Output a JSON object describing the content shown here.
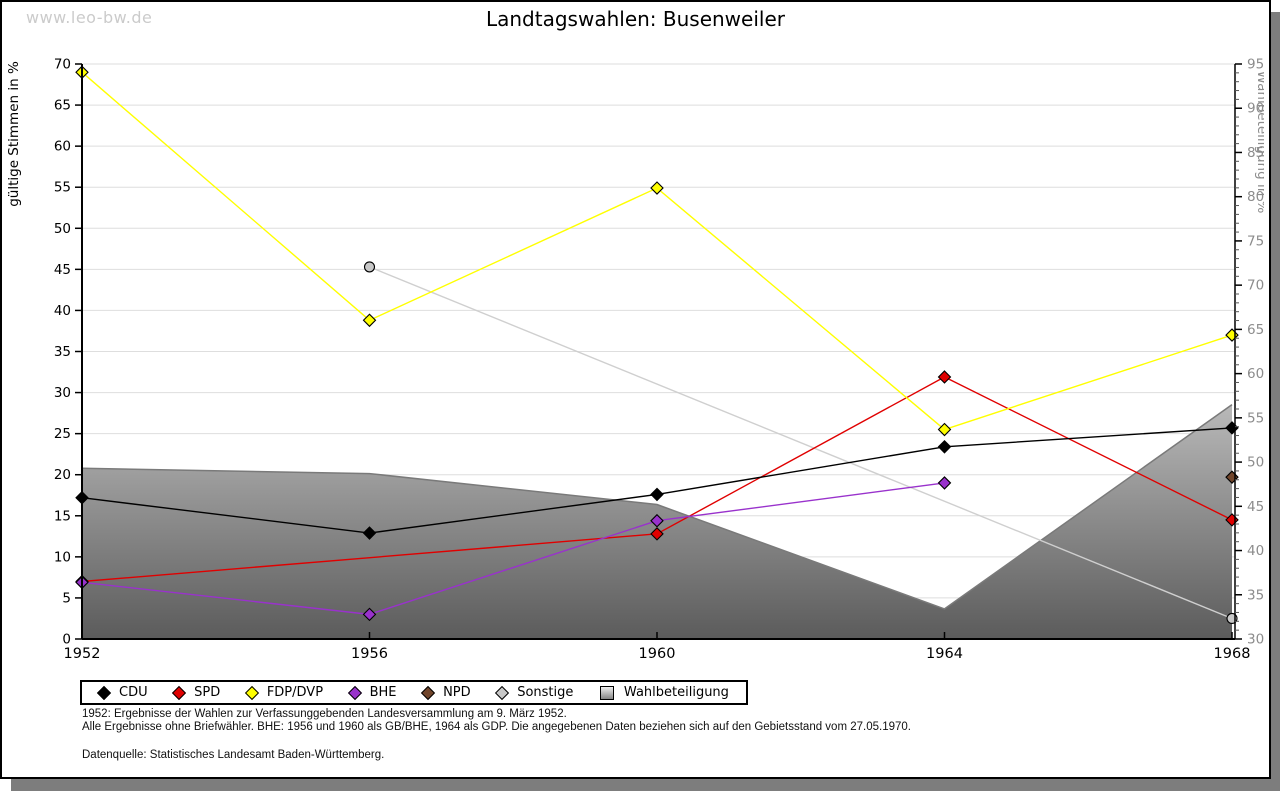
{
  "watermark": "www.leo-bw.de",
  "title": "Landtagswahlen: Busenweiler",
  "footnotes": {
    "line1": "1952: Ergebnisse der Wahlen zur Verfassunggebenden Landesversammlung am 9. März 1952.",
    "line2": "Alle Ergebnisse ohne Briefwähler. BHE: 1956 und 1960 als GB/BHE, 1964 als GDP. Die angegebenen Daten beziehen sich auf den Gebietsstand vom 27.05.1970.",
    "source": "Datenquelle: Statistisches Landesamt Baden-Württemberg."
  },
  "legend": {
    "items": [
      {
        "label": "CDU",
        "color": "#000000",
        "shape": "diamond"
      },
      {
        "label": "SPD",
        "color": "#e00000",
        "shape": "diamond"
      },
      {
        "label": "FDP/DVP",
        "color": "#ffff00",
        "shape": "diamond"
      },
      {
        "label": "BHE",
        "color": "#9932cc",
        "shape": "diamond"
      },
      {
        "label": "NPD",
        "color": "#71452b",
        "shape": "diamond"
      },
      {
        "label": "Sonstige",
        "color": "#c8c8c8",
        "shape": "diamond"
      },
      {
        "label": "Wahlbeteiligung",
        "color": "#9a9a9a",
        "shape": "square"
      }
    ]
  },
  "chart_data": {
    "type": "line",
    "title": "Landtagswahlen: Busenweiler",
    "x": [
      1952,
      1956,
      1960,
      1964,
      1968
    ],
    "y_left": {
      "label": "gültige Stimmen in %",
      "min": 0,
      "max": 70,
      "tick_step": 5,
      "text_color": "#000000"
    },
    "y_right": {
      "label": "Wahlbeteiligung in %",
      "min": 30,
      "max": 95,
      "tick_step": 5,
      "minor_step": 1,
      "text_color": "#8c8c8c"
    },
    "grid": true,
    "grid_color": "#dedede",
    "legend_position": "bottom",
    "series": [
      {
        "name": "Sonstige",
        "axis": "left",
        "color": "#cfcfcf",
        "marker": "circle",
        "marker_fill": "#c8c8c8",
        "points": [
          [
            1956,
            45.3
          ],
          [
            1968,
            2.5
          ]
        ]
      },
      {
        "name": "SPD",
        "axis": "left",
        "color": "#e00000",
        "marker": "diamond",
        "points": [
          [
            1952,
            7.0
          ],
          [
            1960,
            12.8
          ],
          [
            1964,
            31.9
          ],
          [
            1968,
            14.5
          ]
        ]
      },
      {
        "name": "BHE",
        "axis": "left",
        "color": "#9932cc",
        "marker": "diamond",
        "points": [
          [
            1952,
            6.9
          ],
          [
            1956,
            3.0
          ],
          [
            1960,
            14.4
          ],
          [
            1964,
            19.0
          ]
        ]
      },
      {
        "name": "CDU",
        "axis": "left",
        "color": "#000000",
        "marker": "diamond",
        "points": [
          [
            1952,
            17.2
          ],
          [
            1956,
            12.9
          ],
          [
            1960,
            17.6
          ],
          [
            1964,
            23.4
          ],
          [
            1968,
            25.7
          ]
        ]
      },
      {
        "name": "FDP/DVP",
        "axis": "left",
        "color": "#ffff00",
        "marker": "diamond",
        "points": [
          [
            1952,
            69.0
          ],
          [
            1956,
            38.8
          ],
          [
            1960,
            54.9
          ],
          [
            1964,
            25.5
          ],
          [
            1968,
            37.0
          ]
        ]
      },
      {
        "name": "NPD",
        "axis": "left",
        "color": "#71452b",
        "marker": "diamond",
        "points": [
          [
            1968,
            19.7
          ]
        ]
      }
    ],
    "area_series": {
      "name": "Wahlbeteiligung",
      "axis": "right",
      "stroke": "#7a7a7a",
      "fill_top": "#bcbcbc",
      "fill_bottom": "#5a5a5a",
      "points": [
        [
          1952,
          49.3
        ],
        [
          1956,
          48.7
        ],
        [
          1960,
          45.2
        ],
        [
          1964,
          33.4
        ],
        [
          1968,
          56.5
        ]
      ]
    }
  }
}
